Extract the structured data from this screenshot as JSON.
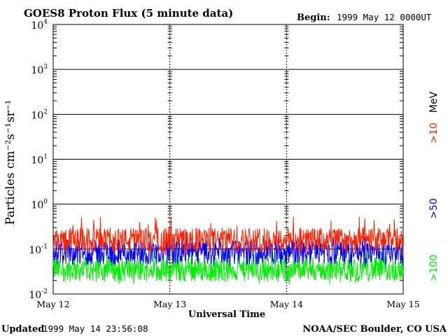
{
  "header": {
    "title": "GOES8 Proton Flux (5 minute data)",
    "begin_label": "Begin:",
    "begin_value": "1999 May 12 0000UT"
  },
  "footer": {
    "updated_label": "Updated",
    "updated_value": "1999 May 14 23:56:08",
    "credit": "NOAA/SEC Boulder, CO USA"
  },
  "chart_data": {
    "type": "line",
    "title": "GOES8 Proton Flux (5 minute data)",
    "xlabel": "Universal Time",
    "ylabel": "Particles cm⁻²s⁻¹sr⁻¹",
    "yscale": "log",
    "ylim": [
      0.01,
      10000
    ],
    "yticks": [
      {
        "base": "10",
        "exp": "-2",
        "value": 0.01
      },
      {
        "base": "10",
        "exp": "-1",
        "value": 0.1
      },
      {
        "base": "10",
        "exp": "0",
        "value": 1
      },
      {
        "base": "10",
        "exp": "1",
        "value": 10
      },
      {
        "base": "10",
        "exp": "2",
        "value": 100
      },
      {
        "base": "10",
        "exp": "3",
        "value": 1000
      },
      {
        "base": "10",
        "exp": "4",
        "value": 10000
      }
    ],
    "xticks": [
      "May 12",
      "May 13",
      "May 14",
      "May 15"
    ],
    "grid": true,
    "legend_position": "right",
    "unit_label": "MeV",
    "series": [
      {
        "name": ">10",
        "color": "#ff2200",
        "typical": 0.16,
        "min": 0.07,
        "max": 0.55
      },
      {
        "name": ">50",
        "color": "#0000ff",
        "typical": 0.085,
        "min": 0.04,
        "max": 0.2
      },
      {
        "name": ">100",
        "color": "#00ee00",
        "typical": 0.035,
        "min": 0.016,
        "max": 0.1
      }
    ]
  }
}
